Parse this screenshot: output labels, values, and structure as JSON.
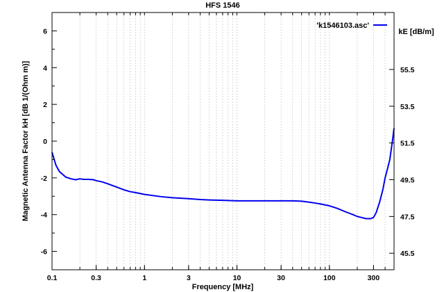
{
  "chart_data": {
    "type": "line",
    "title": "HFS 1546",
    "xlabel": "Frequency [MHz]",
    "ylabel": "Magnetic Antenna Factor kH [dB 1/(Ohm m)]",
    "y2label": "kE [dB/m]",
    "x_scale": "log",
    "xlim": [
      0.1,
      500
    ],
    "ylim": [
      -7,
      7
    ],
    "x_ticks": [
      0.1,
      0.3,
      1,
      3,
      10,
      30,
      100,
      300
    ],
    "x_tick_labels": [
      "0.1",
      "0.3",
      "1",
      "3",
      "10",
      "30",
      "100",
      "300"
    ],
    "y_ticks": [
      6,
      4,
      2,
      0,
      -2,
      -4,
      -6
    ],
    "y_tick_labels": [
      "6",
      "4",
      "2",
      "0",
      "-2",
      "-4",
      "-6"
    ],
    "y2_ticks": [
      6,
      4,
      2,
      0,
      -2,
      -4,
      -6
    ],
    "y2_tick_labels": [
      "55.5",
      "53.5",
      "51.5",
      "49.5",
      "47.5",
      "45.5"
    ],
    "y2_tick_positions": [
      3.9,
      1.9,
      -0.1,
      -2.1,
      -4.1,
      -6.1
    ],
    "grid": "vertical",
    "legend_position": "top-right",
    "series": [
      {
        "name": "'k1546103.asc'",
        "color": "#0000ee",
        "x": [
          0.1,
          0.11,
          0.12,
          0.14,
          0.16,
          0.18,
          0.2,
          0.22,
          0.25,
          0.28,
          0.3,
          0.35,
          0.4,
          0.5,
          0.6,
          0.7,
          0.8,
          1,
          1.5,
          2,
          3,
          4,
          5,
          7,
          10,
          15,
          20,
          30,
          40,
          50,
          60,
          70,
          80,
          100,
          120,
          150,
          180,
          200,
          220,
          250,
          280,
          300,
          320,
          350,
          380,
          400,
          430,
          450,
          480,
          500
        ],
        "y": [
          -0.6,
          -1.3,
          -1.65,
          -1.95,
          -2.05,
          -2.1,
          -2.05,
          -2.08,
          -2.08,
          -2.1,
          -2.15,
          -2.22,
          -2.32,
          -2.5,
          -2.65,
          -2.75,
          -2.8,
          -2.9,
          -3.02,
          -3.08,
          -3.13,
          -3.18,
          -3.2,
          -3.22,
          -3.25,
          -3.25,
          -3.25,
          -3.25,
          -3.25,
          -3.27,
          -3.32,
          -3.37,
          -3.42,
          -3.52,
          -3.65,
          -3.85,
          -4.0,
          -4.1,
          -4.15,
          -4.22,
          -4.22,
          -4.15,
          -3.9,
          -3.3,
          -2.6,
          -2.0,
          -1.4,
          -1.0,
          0.0,
          0.7
        ]
      }
    ]
  }
}
